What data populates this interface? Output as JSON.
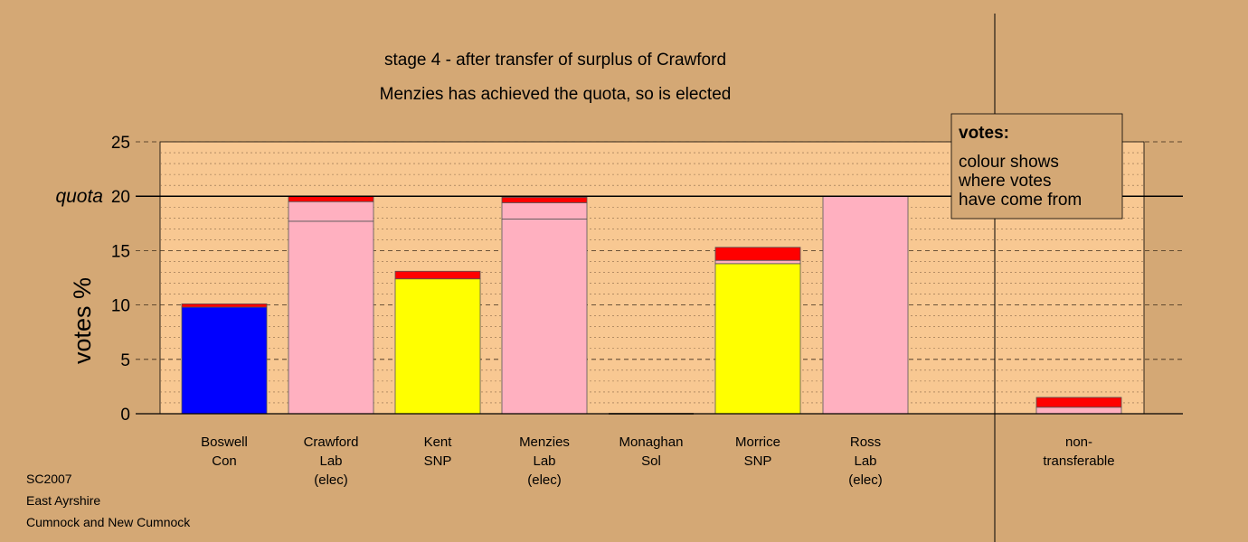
{
  "chart_data": {
    "type": "bar",
    "title": "stage 4 - after transfer of surplus of Crawford",
    "subtitle": "Menzies has achieved the quota, so is elected",
    "ylabel": "votes %",
    "ylim": [
      0,
      25
    ],
    "yticks": [
      0,
      5,
      10,
      15,
      20,
      25
    ],
    "quota": {
      "label": "quota",
      "value": 20
    },
    "grid": "dashed horizontal",
    "categories": [
      {
        "lines": [
          "Boswell",
          "Con"
        ],
        "segments": [
          {
            "value": 9.8,
            "color": "#0000ff"
          },
          {
            "value": 0.3,
            "color": "#ff0000"
          }
        ]
      },
      {
        "lines": [
          "Crawford",
          "Lab",
          "(elec)"
        ],
        "segments": [
          {
            "value": 17.7,
            "color": "#ffb0c0"
          },
          {
            "value": 1.8,
            "color": "#ffb0c0"
          },
          {
            "value": 0.5,
            "color": "#ff0000"
          }
        ]
      },
      {
        "lines": [
          "Kent",
          "SNP"
        ],
        "segments": [
          {
            "value": 12.4,
            "color": "#ffff00"
          },
          {
            "value": 0.7,
            "color": "#ff0000"
          }
        ]
      },
      {
        "lines": [
          "Menzies",
          "Lab",
          "(elec)"
        ],
        "segments": [
          {
            "value": 17.9,
            "color": "#ffb0c0"
          },
          {
            "value": 1.5,
            "color": "#ffb0c0"
          },
          {
            "value": 0.5,
            "color": "#ff0000"
          }
        ]
      },
      {
        "lines": [
          "Monaghan",
          "Sol"
        ],
        "segments": []
      },
      {
        "lines": [
          "Morrice",
          "SNP"
        ],
        "segments": [
          {
            "value": 13.8,
            "color": "#ffff00"
          },
          {
            "value": 0.3,
            "color": "#ffb0c0"
          },
          {
            "value": 1.2,
            "color": "#ff0000"
          }
        ]
      },
      {
        "lines": [
          "Ross",
          "Lab",
          "(elec)"
        ],
        "segments": [
          {
            "value": 20.0,
            "color": "#ffb0c0"
          }
        ]
      },
      {
        "lines": [
          "non-",
          "transferable"
        ],
        "segments": [
          {
            "value": 0.6,
            "color": "#ffb0c0"
          },
          {
            "value": 0.9,
            "color": "#ff0000"
          }
        ]
      }
    ]
  },
  "legend": {
    "title": "votes:",
    "lines": [
      "colour shows",
      "where votes",
      "have come from"
    ]
  },
  "footer": [
    "SC2007",
    "East Ayrshire",
    "Cumnock and New Cumnock"
  ],
  "colors": {
    "background": "#d4a875",
    "plot_background": "#f8c892",
    "con": "#0000ff",
    "lab": "#ffb0c0",
    "snp": "#ffff00",
    "transfer": "#ff0000"
  }
}
